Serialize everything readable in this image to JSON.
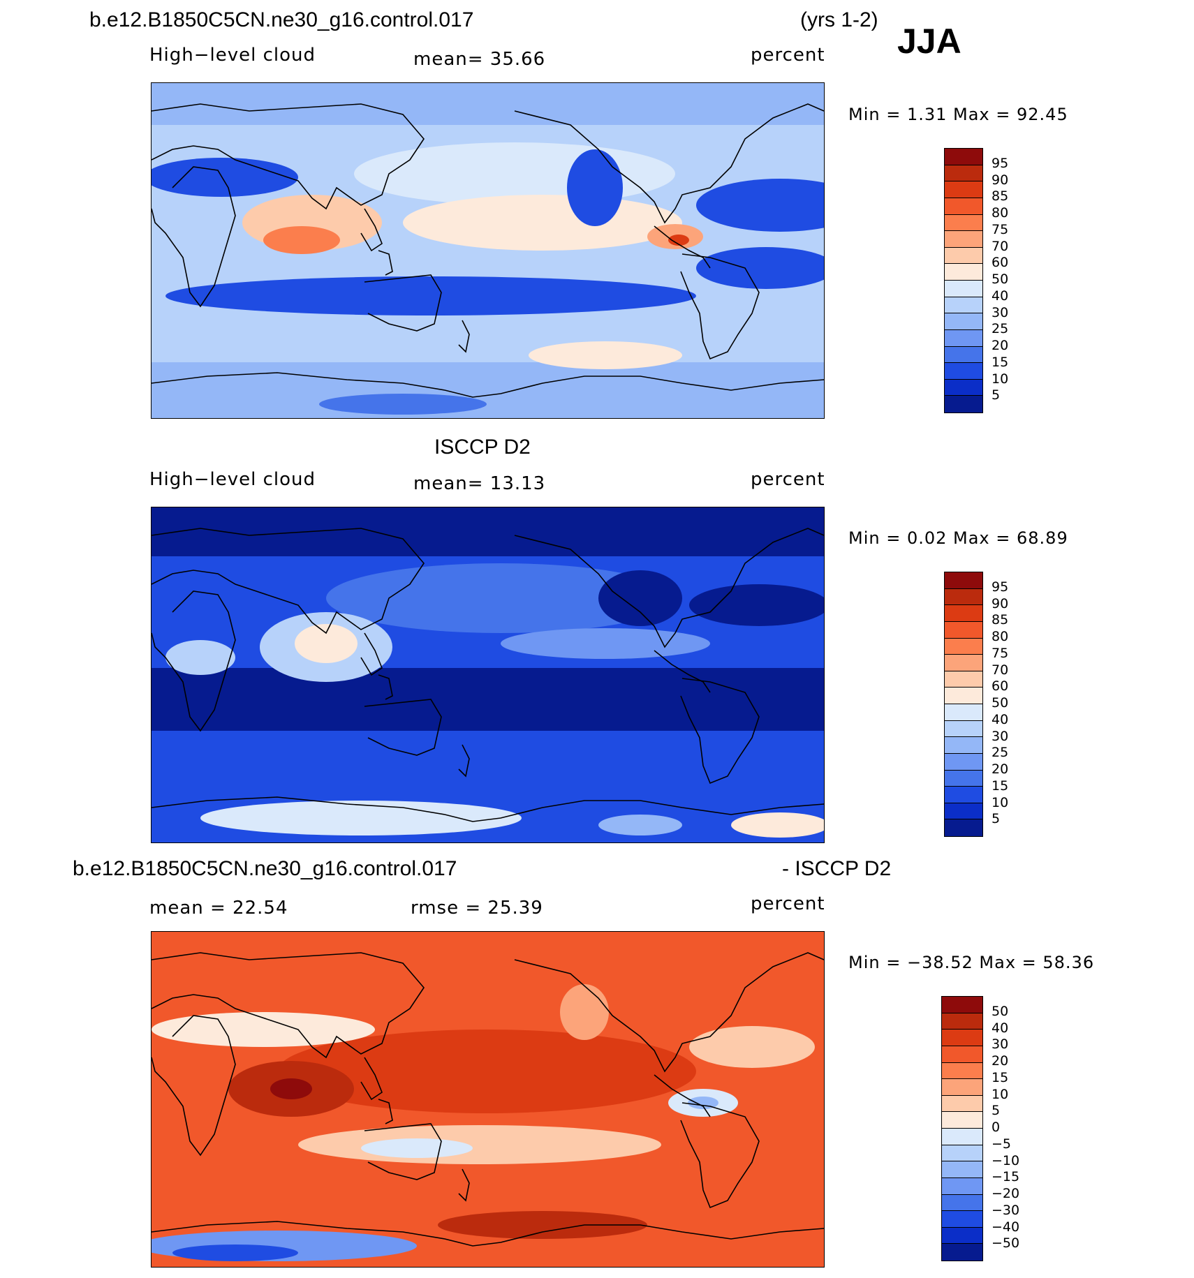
{
  "header": {
    "case_title": "b.e12.B1850C5CN.ne30_g16.control.017",
    "years": "(yrs 1-2)",
    "season": "JJA"
  },
  "panel1": {
    "left_label": "High−level cloud",
    "mean_label": "mean=   35.66",
    "units": "percent",
    "minmax": "Min =    1.31  Max =   92.45"
  },
  "panel2": {
    "title": "ISCCP D2",
    "left_label": "High−level cloud",
    "mean_label": "mean=   13.13",
    "units": "percent",
    "minmax": "Min =    0.02  Max =   68.89"
  },
  "panel3": {
    "title_left": "b.e12.B1850C5CN.ne30_g16.control.017",
    "title_right": "- ISCCP D2",
    "mean_label": "mean =   22.54",
    "rmse_label": "rmse =   25.39",
    "units": "percent",
    "minmax": "Min = −38.52  Max =   58.36"
  },
  "chart_data": [
    {
      "type": "heatmap",
      "title": "High−level cloud",
      "units": "percent",
      "mean": 35.66,
      "min": 1.31,
      "max": 92.45,
      "colorbar_levels": [
        "95",
        "90",
        "85",
        "80",
        "75",
        "70",
        "60",
        "50",
        "40",
        "30",
        "25",
        "20",
        "15",
        "10",
        "5"
      ],
      "colorbar_colors": [
        "#8e0b0b",
        "#bb2b0d",
        "#dc3b13",
        "#f1582b",
        "#fb7e4d",
        "#fca47a",
        "#fdcbab",
        "#fdeadb",
        "#dae9fb",
        "#b7d2fa",
        "#94b7f7",
        "#6f97f3",
        "#4574ea",
        "#1f4ce2",
        "#0b2ec8",
        "#061b8f"
      ]
    },
    {
      "type": "heatmap",
      "title": "High−level cloud",
      "units": "percent",
      "mean": 13.13,
      "min": 0.02,
      "max": 68.89,
      "colorbar_levels": [
        "95",
        "90",
        "85",
        "80",
        "75",
        "70",
        "60",
        "50",
        "40",
        "30",
        "25",
        "20",
        "15",
        "10",
        "5"
      ],
      "colorbar_colors": [
        "#8e0b0b",
        "#bb2b0d",
        "#dc3b13",
        "#f1582b",
        "#fb7e4d",
        "#fca47a",
        "#fdcbab",
        "#fdeadb",
        "#dae9fb",
        "#b7d2fa",
        "#94b7f7",
        "#6f97f3",
        "#4574ea",
        "#1f4ce2",
        "#0b2ec8",
        "#061b8f"
      ]
    },
    {
      "type": "heatmap",
      "title": "b.e12.B1850C5CN.ne30_g16.control.017 - ISCCP D2",
      "units": "percent",
      "mean": 22.54,
      "rmse": 25.39,
      "min": -38.52,
      "max": 58.36,
      "colorbar_levels": [
        "50",
        "40",
        "30",
        "20",
        "15",
        "10",
        "5",
        "0",
        "−5",
        "−10",
        "−15",
        "−20",
        "−30",
        "−40",
        "−50"
      ],
      "colorbar_colors": [
        "#8e0b0b",
        "#bb2b0d",
        "#dc3b13",
        "#f1582b",
        "#fb7e4d",
        "#fca47a",
        "#fdcbab",
        "#fdeadb",
        "#dae9fb",
        "#b7d2fa",
        "#94b7f7",
        "#6f97f3",
        "#4574ea",
        "#1f4ce2",
        "#0b2ec8",
        "#061b8f"
      ]
    }
  ]
}
